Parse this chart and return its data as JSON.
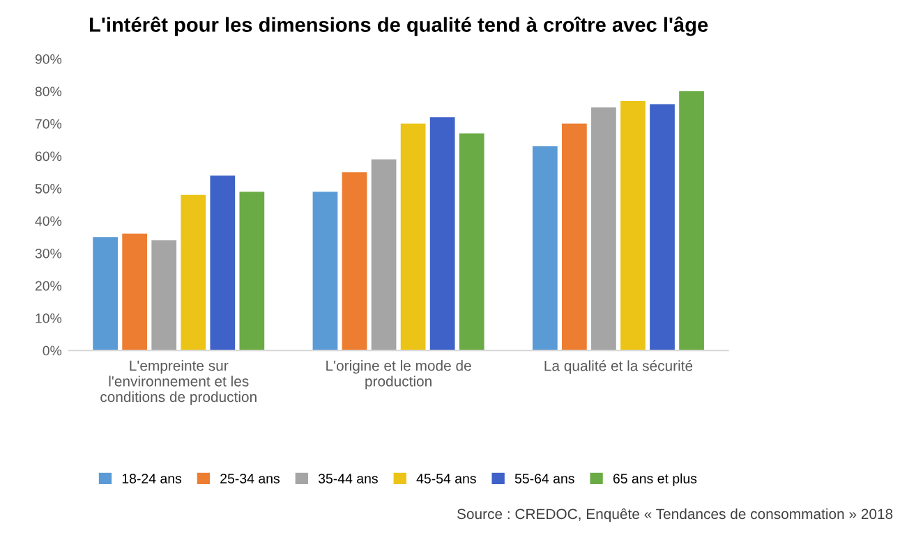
{
  "chart_data": {
    "type": "bar",
    "title": "L'intérêt pour les dimensions de qualité tend à croître avec l'âge",
    "categories": [
      "L'empreinte sur l'environnement et les conditions de production",
      "L'origine et le mode de production",
      "La qualité et la sécurité"
    ],
    "series": [
      {
        "name": "18-24 ans",
        "color": "#5b9bd5",
        "values": [
          35,
          49,
          63
        ]
      },
      {
        "name": "25-34 ans",
        "color": "#ed7d31",
        "values": [
          36,
          55,
          70
        ]
      },
      {
        "name": "35-44 ans",
        "color": "#a5a5a5",
        "values": [
          34,
          59,
          75
        ]
      },
      {
        "name": "45-54 ans",
        "color": "#ecc417",
        "values": [
          48,
          70,
          77
        ]
      },
      {
        "name": "55-64 ans",
        "color": "#3f62c8",
        "values": [
          54,
          72,
          76
        ]
      },
      {
        "name": "65 ans et plus",
        "color": "#6aab45",
        "values": [
          49,
          67,
          80
        ]
      }
    ],
    "ylim": [
      0,
      90
    ],
    "yticks": [
      {
        "value": 0,
        "label": "0%"
      },
      {
        "value": 10,
        "label": "10%"
      },
      {
        "value": 20,
        "label": "20%"
      },
      {
        "value": 30,
        "label": "30%"
      },
      {
        "value": 40,
        "label": "40%"
      },
      {
        "value": 50,
        "label": "50%"
      },
      {
        "value": 60,
        "label": "60%"
      },
      {
        "value": 70,
        "label": "70%"
      },
      {
        "value": 80,
        "label": "80%"
      },
      {
        "value": 90,
        "label": "90%"
      }
    ],
    "grid": false,
    "legend": "bottom",
    "annotations": [
      "Source : CREDOC, Enquête « Tendances de consommation » 2018"
    ]
  }
}
